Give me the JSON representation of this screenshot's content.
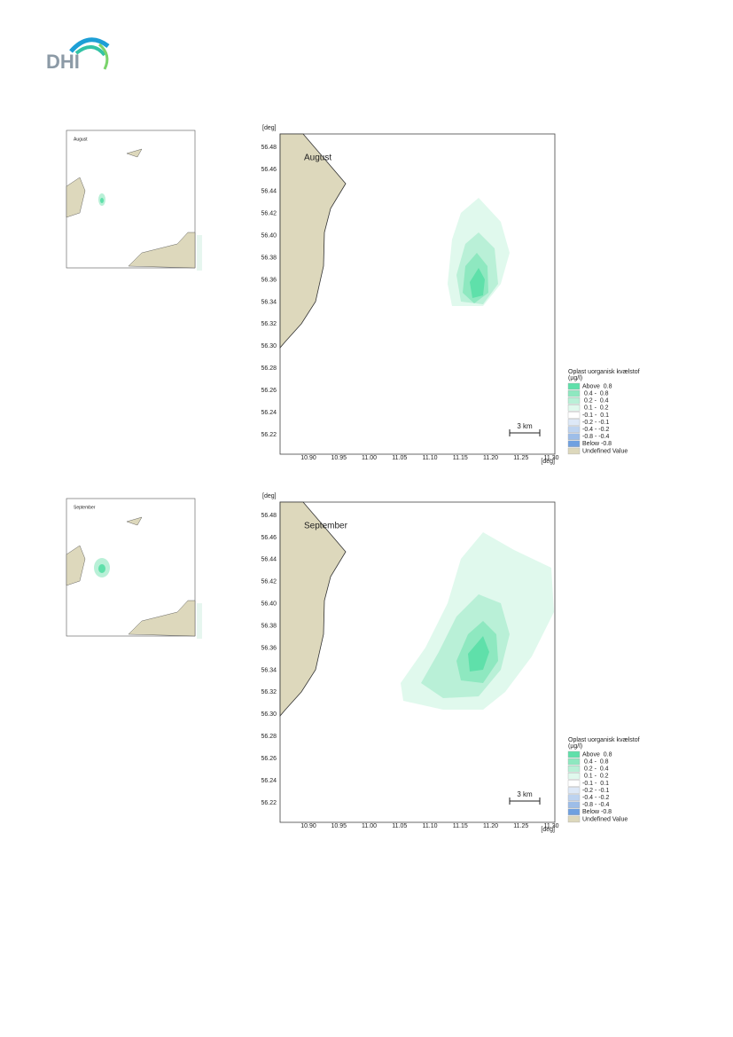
{
  "logo": "DHI",
  "axes": {
    "unit": "[deg]",
    "xticks": [
      "10.90",
      "10.95",
      "11.00",
      "11.05",
      "11.10",
      "11.15",
      "11.20",
      "11.25",
      "11.30"
    ],
    "yticks": [
      "56.48",
      "56.46",
      "56.44",
      "56.42",
      "56.40",
      "56.38",
      "56.36",
      "56.34",
      "56.32",
      "56.30",
      "56.28",
      "56.26",
      "56.24",
      "56.22"
    ]
  },
  "scale_bar": "3 km",
  "legend": {
    "title": "Oplast uorganisk kvælstof",
    "unit": "(µg/l)",
    "entries": [
      {
        "label": "Above  0.8",
        "color": "#5fe0aa"
      },
      {
        "label": " 0.4 -  0.8",
        "color": "#8ee8c0"
      },
      {
        "label": " 0.2 -  0.4",
        "color": "#b9f0d7"
      },
      {
        "label": " 0.1 -  0.2",
        "color": "#e0f9ed"
      },
      {
        "label": "-0.1 -  0.1",
        "color": "#ffffff"
      },
      {
        "label": "-0.2 - -0.1",
        "color": "#dde8f7"
      },
      {
        "label": "-0.4 - -0.2",
        "color": "#bdd3f0"
      },
      {
        "label": "-0.8 - -0.4",
        "color": "#9dbde8"
      },
      {
        "label": "Below -0.8",
        "color": "#6fa0e0"
      },
      {
        "label": "Undefined Value",
        "color": "#ddd8bc"
      }
    ]
  },
  "maps": [
    {
      "label": "August"
    },
    {
      "label": "September"
    }
  ]
}
